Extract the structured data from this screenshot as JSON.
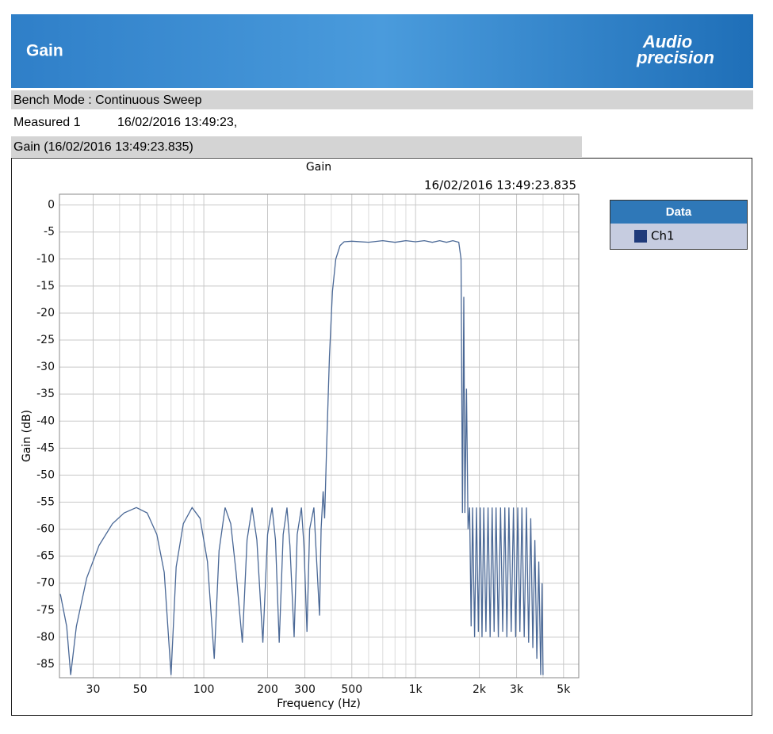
{
  "header": {
    "title": "Gain",
    "logo": [
      "Audio",
      "precision"
    ]
  },
  "info": {
    "mode": "Bench Mode : Continuous Sweep",
    "measured": [
      "Measured 1",
      "16/02/2016 13:49:23,"
    ],
    "panel_title": "Gain (16/02/2016 13:49:23.835)"
  },
  "chart_data": {
    "type": "line",
    "title": "Gain",
    "subtitle": "16/02/2016 13:49:23.835",
    "x_label": "Frequency (Hz)",
    "y_label": "Gain (dB)",
    "log_x": true,
    "grid": true,
    "legend_title": "Data",
    "legend": "right",
    "xlim": [
      20.8,
      5900
    ],
    "ylim": [
      -87.5,
      2
    ],
    "xticks": [
      30,
      50,
      100,
      200,
      300,
      500,
      {
        "value": 1000,
        "label": "1k"
      },
      {
        "value": 2000,
        "label": "2k"
      },
      {
        "value": 3000,
        "label": "3k"
      },
      {
        "value": 5000,
        "label": "5k"
      }
    ],
    "minor_xticks": [
      40,
      60,
      70,
      80,
      90,
      400,
      600,
      700,
      800,
      900,
      4000
    ],
    "yticks": [
      0,
      -5,
      -10,
      -15,
      -20,
      -25,
      -30,
      -35,
      -40,
      -45,
      -50,
      -55,
      -60,
      -65,
      -70,
      -75,
      -80,
      -85
    ],
    "x": [
      21,
      22.5,
      23.5,
      25,
      28,
      32,
      37,
      42,
      48,
      54,
      60,
      65,
      70,
      74,
      80,
      88,
      96,
      104,
      112,
      118,
      126,
      134,
      142,
      152,
      160,
      169,
      178,
      190,
      200,
      210,
      218,
      227,
      237,
      247,
      255,
      267,
      276,
      289,
      297,
      307,
      316,
      331,
      338,
      352,
      358,
      366,
      372,
      380,
      392,
      405,
      420,
      440,
      460,
      500,
      600,
      700,
      800,
      900,
      1000,
      1100,
      1200,
      1300,
      1400,
      1500,
      1600,
      1640,
      1665,
      1690,
      1710,
      1740,
      1770,
      1800,
      1830,
      1860,
      1900,
      1940,
      1980,
      2020,
      2060,
      2100,
      2150,
      2200,
      2250,
      2300,
      2350,
      2400,
      2460,
      2520,
      2580,
      2640,
      2700,
      2760,
      2830,
      2900,
      2970,
      3040,
      3110,
      3180,
      3260,
      3340,
      3420,
      3500,
      3580,
      3660,
      3740,
      3820,
      3900,
      3960,
      4000
    ],
    "series": [
      {
        "name": "Ch1",
        "color": "#1f3a7a",
        "line_color": "#4a6896",
        "values": [
          -72,
          -78,
          -87,
          -78,
          -69,
          -63,
          -59,
          -57,
          -56,
          -57,
          -61,
          -68,
          -87,
          -67,
          -59,
          -56,
          -58,
          -66,
          -84,
          -64,
          -56,
          -59,
          -68,
          -81,
          -62,
          -56,
          -62,
          -81,
          -61,
          -56,
          -62,
          -81,
          -61,
          -56,
          -63,
          -80,
          -61,
          -56,
          -63,
          -79,
          -60,
          -56,
          -63,
          -76,
          -60,
          -53,
          -58,
          -45,
          -28,
          -16,
          -10,
          -7.5,
          -6.8,
          -6.7,
          -6.9,
          -6.6,
          -6.9,
          -6.6,
          -6.8,
          -6.6,
          -6.9,
          -6.6,
          -6.9,
          -6.6,
          -6.9,
          -10,
          -57,
          -17,
          -57,
          -34,
          -60,
          -56,
          -78,
          -56,
          -80,
          -56,
          -79,
          -56,
          -80,
          -56,
          -79,
          -56,
          -80,
          -56,
          -79,
          -56,
          -80,
          -56,
          -79,
          -56,
          -80,
          -56,
          -79,
          -56,
          -80,
          -56,
          -79,
          -56,
          -80,
          -56,
          -81,
          -58,
          -82,
          -62,
          -84,
          -66,
          -87,
          -70,
          -87
        ]
      }
    ]
  }
}
